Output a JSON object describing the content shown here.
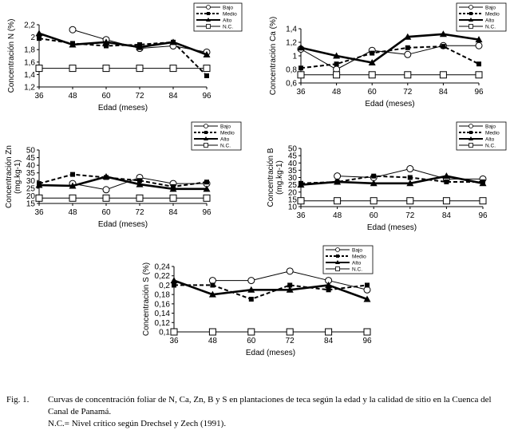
{
  "chart_data": [
    {
      "type": "line",
      "title": "",
      "xlabel": "Edad (meses)",
      "ylabel": "Concentración N (%)",
      "x": [
        36,
        48,
        60,
        72,
        84,
        96
      ],
      "xticks": [
        "36",
        "48",
        "60",
        "72",
        "84",
        "96"
      ],
      "ylim": [
        1.2,
        2.2
      ],
      "yticks": [
        "1,2",
        "1,4",
        "1,6",
        "1,8",
        "2",
        "2,2"
      ],
      "legend_position": "top-right",
      "series": [
        {
          "name": "Bajo",
          "values": [
            null,
            2.12,
            1.96,
            1.82,
            1.86,
            1.76
          ]
        },
        {
          "name": "Medio",
          "values": [
            1.98,
            1.9,
            1.86,
            1.88,
            1.92,
            1.38
          ]
        },
        {
          "name": "Alto",
          "values": [
            2.06,
            1.88,
            1.92,
            1.84,
            1.92,
            1.72
          ]
        },
        {
          "name": "N.C.",
          "values": [
            1.5,
            1.5,
            1.5,
            1.5,
            1.5,
            1.5
          ]
        }
      ]
    },
    {
      "type": "line",
      "title": "",
      "xlabel": "Edad (meses)",
      "ylabel": "Concentración Ca (%)",
      "x": [
        36,
        48,
        60,
        72,
        84,
        96
      ],
      "xticks": [
        "36",
        "48",
        "60",
        "72",
        "84",
        "96"
      ],
      "ylim": [
        0.6,
        1.4
      ],
      "yticks": [
        "0,6",
        "0,8",
        "1",
        "1,2",
        "1,4"
      ],
      "legend_position": "top-right",
      "series": [
        {
          "name": "Bajo",
          "values": [
            1.1,
            0.8,
            1.08,
            1.02,
            1.15,
            1.15
          ]
        },
        {
          "name": "Medio",
          "values": [
            0.82,
            0.88,
            1.04,
            1.12,
            1.14,
            0.88
          ]
        },
        {
          "name": "Alto",
          "values": [
            1.12,
            1.0,
            0.9,
            1.28,
            1.32,
            1.24
          ]
        },
        {
          "name": "N.C.",
          "values": [
            0.72,
            0.72,
            0.72,
            0.72,
            0.72,
            0.72
          ]
        }
      ]
    },
    {
      "type": "line",
      "title": "",
      "xlabel": "Edad (meses)",
      "ylabel": "Concentración Zn",
      "ylabel2": "(mg.kg-1)",
      "x": [
        36,
        48,
        60,
        72,
        84,
        96
      ],
      "xticks": [
        "36",
        "48",
        "60",
        "72",
        "84",
        "96"
      ],
      "ylim": [
        15,
        50
      ],
      "yticks": [
        "15",
        "20",
        "25",
        "30",
        "35",
        "40",
        "45",
        "50"
      ],
      "legend_position": "top-right",
      "series": [
        {
          "name": "Bajo",
          "values": [
            null,
            28,
            24,
            32,
            28,
            28
          ]
        },
        {
          "name": "Medio",
          "values": [
            28,
            34,
            32,
            30,
            26,
            29
          ]
        },
        {
          "name": "Alto",
          "values": [
            27,
            26.5,
            32.5,
            27.5,
            24.5,
            24.5
          ]
        },
        {
          "name": "N.C.",
          "values": [
            18.5,
            18.5,
            18.5,
            18.5,
            18.5,
            18.5
          ]
        }
      ]
    },
    {
      "type": "line",
      "title": "",
      "xlabel": "Edad (meses)",
      "ylabel": "Concentración B",
      "ylabel2": "(mg.kg-1)",
      "x": [
        36,
        48,
        60,
        72,
        84,
        96
      ],
      "xticks": [
        "36",
        "48",
        "60",
        "72",
        "84",
        "96"
      ],
      "ylim": [
        10,
        50
      ],
      "yticks": [
        "10",
        "15",
        "20",
        "25",
        "30",
        "35",
        "40",
        "45",
        "50"
      ],
      "legend_position": "top-right",
      "series": [
        {
          "name": "Bajo",
          "values": [
            null,
            31,
            30,
            36,
            29,
            29
          ]
        },
        {
          "name": "Medio",
          "values": [
            26,
            27,
            31,
            30,
            27,
            27
          ]
        },
        {
          "name": "Alto",
          "values": [
            25,
            27,
            26,
            26,
            31,
            26
          ]
        },
        {
          "name": "N.C.",
          "values": [
            14,
            14,
            14,
            14,
            14,
            14
          ]
        }
      ]
    },
    {
      "type": "line",
      "title": "",
      "xlabel": "Edad (meses)",
      "ylabel": "Concentración S (%)",
      "x": [
        36,
        48,
        60,
        72,
        84,
        96
      ],
      "xticks": [
        "36",
        "48",
        "60",
        "72",
        "84",
        "96"
      ],
      "ylim": [
        0.1,
        0.24
      ],
      "yticks": [
        "0,1",
        "0,12",
        "0,14",
        "0,16",
        "0,18",
        "0,2",
        "0,22",
        "0,24"
      ],
      "legend_position": "top-right",
      "series": [
        {
          "name": "Bajo",
          "values": [
            null,
            0.21,
            0.21,
            0.23,
            0.21,
            0.19
          ]
        },
        {
          "name": "Medio",
          "values": [
            0.2,
            0.2,
            0.17,
            0.2,
            0.19,
            0.2
          ]
        },
        {
          "name": "Alto",
          "values": [
            0.21,
            0.18,
            0.19,
            0.19,
            0.2,
            0.17
          ]
        },
        {
          "name": "N.C.",
          "values": [
            0.1,
            0.1,
            0.1,
            0.1,
            0.1,
            0.1
          ]
        }
      ]
    }
  ],
  "caption": {
    "label": "Fig. 1.",
    "line1": "Curvas de concentración foliar de N, Ca, Zn, B y S en plantaciones de teca según la edad y la calidad de sitio en la Cuenca del Canal de Panamá.",
    "line2": "N.C.= Nivel crítico según Drechsel y Zech (1991)."
  }
}
